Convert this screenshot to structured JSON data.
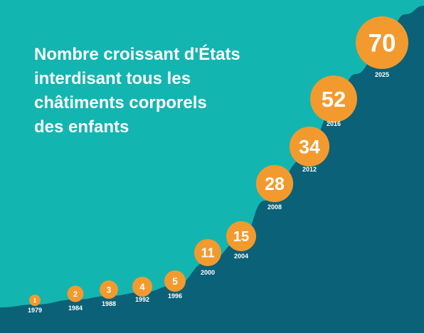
{
  "title_lines": [
    "Nombre croissant d'États",
    "interdisant tous les",
    "châtiments corporels",
    "des enfants"
  ],
  "colors": {
    "background": "#13b5b1",
    "area": "#0a6178",
    "bubble": "#f39a2e",
    "bubble_text": "#ffffff",
    "year_text": "#ffffff"
  },
  "chart_data": {
    "type": "area",
    "title": "Nombre croissant d'États interdisant tous les châtiments corporels des enfants",
    "xlabel": "",
    "ylabel": "",
    "grid": false,
    "x": [
      "1979",
      "1984",
      "1988",
      "1992",
      "1996",
      "2000",
      "2004",
      "2008",
      "2012",
      "2016",
      "2025"
    ],
    "values": [
      1,
      2,
      3,
      4,
      5,
      11,
      15,
      28,
      34,
      52,
      70
    ],
    "labels": [
      "1",
      "2",
      "3",
      "4",
      "5",
      "11",
      "15",
      "28",
      "34",
      "52",
      "70"
    ]
  }
}
